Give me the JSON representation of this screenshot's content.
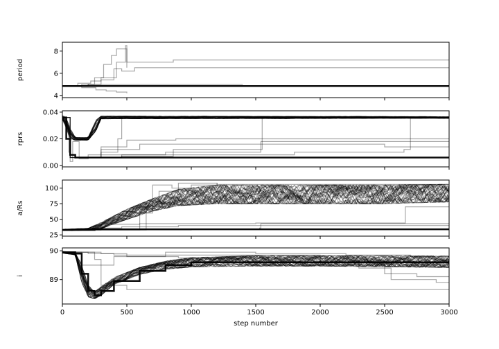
{
  "figure": {
    "background": "#ffffff",
    "trace_color": "#000000",
    "xlabel": "step number"
  },
  "chart_data": [
    {
      "type": "line",
      "panel": "period",
      "ylabel": "period",
      "xlim": [
        0,
        3000
      ],
      "ylim": [
        3.8,
        8.8
      ],
      "yticks": [
        4,
        6,
        8
      ],
      "ytick_labels": [
        "4",
        "6",
        "8"
      ],
      "xticks": [
        0,
        500,
        1000,
        1500,
        2000,
        2500,
        3000
      ],
      "xtick_labels": [],
      "grid": false,
      "series": [
        {
          "style": "dominant",
          "x": [
            0,
            3000
          ],
          "y": [
            4.85,
            4.85
          ]
        },
        {
          "x": [
            0,
            150,
            250,
            320,
            380,
            420,
            500,
            860,
            3000
          ],
          "y": [
            4.85,
            5.0,
            5.6,
            6.8,
            7.6,
            8.2,
            7.0,
            7.2,
            7.2
          ]
        },
        {
          "x": [
            0,
            200,
            300,
            400,
            460,
            560,
            3000
          ],
          "y": [
            4.85,
            5.0,
            5.4,
            6.4,
            6.2,
            6.5,
            6.5
          ]
        },
        {
          "x": [
            0,
            120,
            220,
            300,
            420,
            490,
            500
          ],
          "y": [
            4.85,
            5.1,
            5.3,
            5.6,
            7.0,
            8.5,
            6.5
          ]
        },
        {
          "x": [
            0,
            150,
            260,
            340,
            420,
            500
          ],
          "y": [
            4.85,
            4.7,
            4.5,
            4.4,
            4.3,
            4.2
          ]
        },
        {
          "x": [
            0,
            200,
            500,
            1400
          ],
          "y": [
            4.85,
            5.0,
            5.0,
            5.0
          ]
        }
      ]
    },
    {
      "type": "line",
      "panel": "rprs",
      "ylabel": "rprs",
      "xlim": [
        0,
        3000
      ],
      "ylim": [
        -0.001,
        0.041
      ],
      "yticks": [
        0.0,
        0.02,
        0.04
      ],
      "ytick_labels": [
        "0.00",
        "0.02",
        "0.04"
      ],
      "xticks": [
        0,
        500,
        1000,
        1500,
        2000,
        2500,
        3000
      ],
      "xtick_labels": [],
      "grid": false,
      "series": [
        {
          "style": "band",
          "x": [
            0,
            30,
            60,
            100,
            200,
            260,
            300,
            3000
          ],
          "y": [
            0.036,
            0.032,
            0.024,
            0.02,
            0.02,
            0.03,
            0.036,
            0.036
          ],
          "spread": [
            0.0015,
            0.004,
            0.004,
            0.001,
            0.001,
            0.004,
            0.001,
            0.0006
          ]
        },
        {
          "style": "dominant",
          "x": [
            0,
            30,
            60,
            100,
            3000
          ],
          "y": [
            0.036,
            0.02,
            0.008,
            0.006,
            0.006
          ]
        },
        {
          "x": [
            0,
            60,
            200,
            460,
            860,
            1540,
            3000
          ],
          "y": [
            0.036,
            0.006,
            0.006,
            0.008,
            0.012,
            0.018,
            0.018
          ]
        },
        {
          "x": [
            0,
            60,
            200,
            800,
            1540,
            1550,
            3000
          ],
          "y": [
            0.036,
            0.006,
            0.008,
            0.01,
            0.012,
            0.036,
            0.036
          ]
        },
        {
          "x": [
            0,
            60,
            300,
            460,
            860,
            1800,
            2650,
            2700,
            3000
          ],
          "y": [
            0.036,
            0.006,
            0.006,
            0.007,
            0.008,
            0.01,
            0.012,
            0.036,
            0.036
          ]
        },
        {
          "x": [
            0,
            60,
            300,
            600,
            1000,
            2500,
            3000
          ],
          "y": [
            0.036,
            0.006,
            0.012,
            0.016,
            0.016,
            0.014,
            0.017
          ]
        },
        {
          "x": [
            0,
            60,
            300,
            500,
            880,
            1540,
            3000
          ],
          "y": [
            0.036,
            0.006,
            0.014,
            0.019,
            0.02,
            0.02,
            0.02
          ]
        },
        {
          "x": [
            0,
            30,
            50,
            60,
            80,
            130,
            200,
            300,
            430,
            460,
            3000
          ],
          "y": [
            0.036,
            0.03,
            0.01,
            0.003,
            0.018,
            0.005,
            0.006,
            0.01,
            0.02,
            0.036,
            0.036
          ]
        }
      ]
    },
    {
      "type": "line",
      "panel": "a/Rs",
      "ylabel": "a/Rs",
      "xlim": [
        0,
        3000
      ],
      "ylim": [
        23,
        113
      ],
      "yticks": [
        25,
        50,
        75,
        100
      ],
      "ytick_labels": [
        "25",
        "50",
        "75",
        "100"
      ],
      "xticks": [
        0,
        500,
        1000,
        1500,
        2000,
        2500,
        3000
      ],
      "xtick_labels": [],
      "grid": false,
      "series": [
        {
          "style": "band",
          "x": [
            0,
            200,
            300,
            500,
            700,
            900,
            1200,
            2000,
            2500,
            3000
          ],
          "y": [
            33,
            34,
            40,
            58,
            73,
            85,
            90,
            90,
            90,
            92
          ],
          "spread": [
            1,
            1.5,
            5,
            8,
            10,
            13,
            15,
            15,
            15,
            14
          ]
        },
        {
          "style": "dominant",
          "x": [
            0,
            250,
            3000
          ],
          "y": [
            33,
            34,
            34
          ]
        },
        {
          "x": [
            0,
            300,
            460,
            900,
            3000
          ],
          "y": [
            33,
            36,
            38,
            40,
            40
          ]
        },
        {
          "x": [
            0,
            500,
            1000,
            1530,
            1540,
            3000
          ],
          "y": [
            33,
            33,
            34,
            36,
            43,
            42
          ]
        },
        {
          "x": [
            0,
            300,
            600,
            1500,
            2600,
            2660,
            3000
          ],
          "y": [
            33,
            42,
            43,
            44,
            44,
            70,
            70
          ]
        },
        {
          "x": [
            0,
            600,
            700,
            850,
            1000,
            1200
          ],
          "y": [
            33,
            60,
            105,
            100,
            105,
            108
          ]
        },
        {
          "x": [
            0,
            650,
            750,
            900,
            1200,
            3000
          ],
          "y": [
            33,
            70,
            95,
            108,
            106,
            108
          ]
        }
      ]
    },
    {
      "type": "line",
      "panel": "i",
      "ylabel": "i",
      "xlim": [
        0,
        3000
      ],
      "ylim": [
        88.15,
        90.1
      ],
      "yticks": [
        89,
        90
      ],
      "ytick_labels": [
        "89",
        "90"
      ],
      "xticks": [
        0,
        500,
        1000,
        1500,
        2000,
        2500,
        3000
      ],
      "xtick_labels": [
        "0",
        "500",
        "1000",
        "1500",
        "2000",
        "2500",
        "3000"
      ],
      "xlabel": "step number",
      "grid": false,
      "series": [
        {
          "style": "band",
          "x": [
            0,
            100,
            150,
            200,
            250,
            300,
            400,
            600,
            800,
            1000,
            1500,
            2000,
            3000
          ],
          "y": [
            89.95,
            89.9,
            89.2,
            88.6,
            88.45,
            88.6,
            88.95,
            89.3,
            89.5,
            89.6,
            89.65,
            89.65,
            89.62
          ],
          "spread": [
            0.03,
            0.04,
            0.3,
            0.2,
            0.12,
            0.15,
            0.12,
            0.12,
            0.14,
            0.16,
            0.18,
            0.18,
            0.2
          ]
        },
        {
          "style": "dominant",
          "x": [
            0,
            100,
            150,
            200,
            250,
            300,
            400,
            600,
            800,
            1000,
            3000
          ],
          "y": [
            89.95,
            89.9,
            89.2,
            88.6,
            88.45,
            88.6,
            88.95,
            89.3,
            89.5,
            89.6,
            89.65
          ]
        },
        {
          "x": [
            0,
            150,
            300,
            500,
            800,
            3000
          ],
          "y": [
            89.95,
            89.5,
            88.8,
            88.65,
            88.65,
            88.65
          ]
        },
        {
          "x": [
            0,
            250,
            300,
            400,
            900,
            1600,
            2300,
            2550,
            2900,
            3000
          ],
          "y": [
            89.95,
            89.7,
            89.5,
            89.8,
            89.75,
            89.6,
            89.4,
            89.0,
            88.9,
            88.9
          ]
        },
        {
          "x": [
            0,
            200,
            400,
            900,
            2000,
            2500,
            2750,
            3000
          ],
          "y": [
            89.95,
            89.9,
            89.85,
            89.85,
            89.5,
            89.2,
            89.1,
            89.1
          ]
        },
        {
          "x": [
            0,
            300,
            500,
            800,
            1500,
            2200,
            2700,
            3000
          ],
          "y": [
            89.95,
            89.9,
            89.8,
            89.95,
            89.9,
            89.85,
            89.8,
            89.8
          ]
        }
      ]
    }
  ]
}
